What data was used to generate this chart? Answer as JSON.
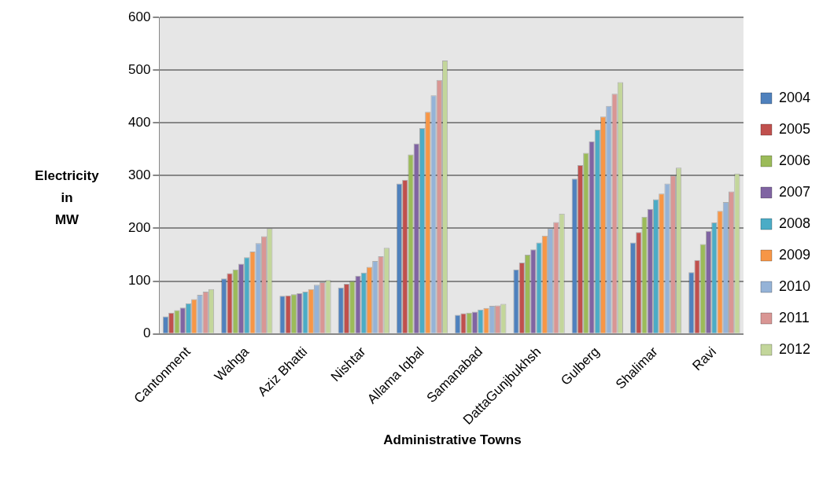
{
  "chart_data": {
    "type": "bar",
    "xlabel": "Administrative Towns",
    "ylabel": "Electricity\nin\nMW",
    "categories": [
      "Cantonment",
      "Wahga",
      "Aziz Bhatti",
      "Nishtar",
      "Allama Iqbal",
      "Samanabad",
      "DattaGunjbukhsh",
      "Gulberg",
      "Shalimar",
      "Ravi"
    ],
    "ylim": [
      0,
      600
    ],
    "yticks": [
      0,
      100,
      200,
      300,
      400,
      500,
      600
    ],
    "grid": "y",
    "legend": "right",
    "series": [
      {
        "name": "2004",
        "color": "#4f81bd",
        "values": [
          33,
          105,
          72,
          88,
          285,
          36,
          122,
          294,
          173,
          117
        ]
      },
      {
        "name": "2005",
        "color": "#c0504d",
        "values": [
          40,
          115,
          73,
          95,
          292,
          39,
          135,
          320,
          193,
          140
        ]
      },
      {
        "name": "2006",
        "color": "#9bbb59",
        "values": [
          45,
          122,
          75,
          100,
          340,
          40,
          150,
          343,
          222,
          170
        ]
      },
      {
        "name": "2007",
        "color": "#8064a2",
        "values": [
          50,
          133,
          77,
          110,
          361,
          42,
          160,
          365,
          237,
          195
        ]
      },
      {
        "name": "2008",
        "color": "#4bacc6",
        "values": [
          58,
          145,
          80,
          116,
          390,
          46,
          173,
          387,
          255,
          211
        ]
      },
      {
        "name": "2009",
        "color": "#f79646",
        "values": [
          66,
          156,
          85,
          127,
          421,
          49,
          186,
          412,
          266,
          233
        ]
      },
      {
        "name": "2010",
        "color": "#95b3d7",
        "values": [
          74,
          172,
          93,
          138,
          452,
          53,
          200,
          432,
          285,
          250
        ]
      },
      {
        "name": "2011",
        "color": "#d99694",
        "values": [
          80,
          185,
          98,
          147,
          481,
          54,
          212,
          455,
          300,
          270
        ]
      },
      {
        "name": "2012",
        "color": "#c3d69b",
        "values": [
          85,
          200,
          102,
          163,
          518,
          57,
          228,
          477,
          315,
          304
        ]
      }
    ]
  }
}
